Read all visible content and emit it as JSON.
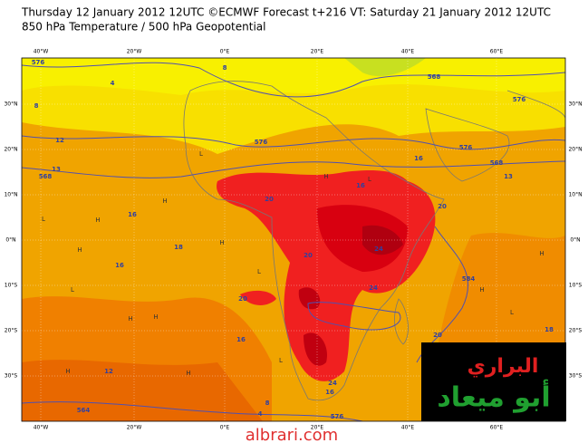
{
  "header": {
    "line1": "Thursday 12 January 2012 12UTC ©ECMWF Forecast t+216 VT: Saturday 21 January 2012 12UTC",
    "line2": "850 hPa Temperature / 500 hPa Geopotential"
  },
  "longitude_labels": [
    "40°W",
    "20°W",
    "0°E",
    "20°E",
    "40°E",
    "60°E"
  ],
  "latitude_labels": [
    "30°N",
    "20°N",
    "10°N",
    "0°N",
    "10°S",
    "20°S",
    "30°S"
  ],
  "contour_labels": [
    576,
    4,
    8,
    12,
    13,
    568,
    16,
    16,
    18,
    12,
    564,
    20,
    16,
    20,
    24,
    20,
    20,
    24,
    16,
    20,
    18,
    16,
    576,
    4,
    8,
    576,
    568,
    13,
    16,
    576,
    584,
    24,
    568,
    576,
    8
  ],
  "pressure_marks": [
    "H",
    "H",
    "L",
    "H",
    "L",
    "H",
    "H",
    "L",
    "H",
    "L",
    "H",
    "L",
    "H",
    "L",
    "H",
    "L",
    "H",
    "H"
  ],
  "watermark": {
    "title": "البراري",
    "name": "أبو ميعاد",
    "site": "albrari.com"
  }
}
